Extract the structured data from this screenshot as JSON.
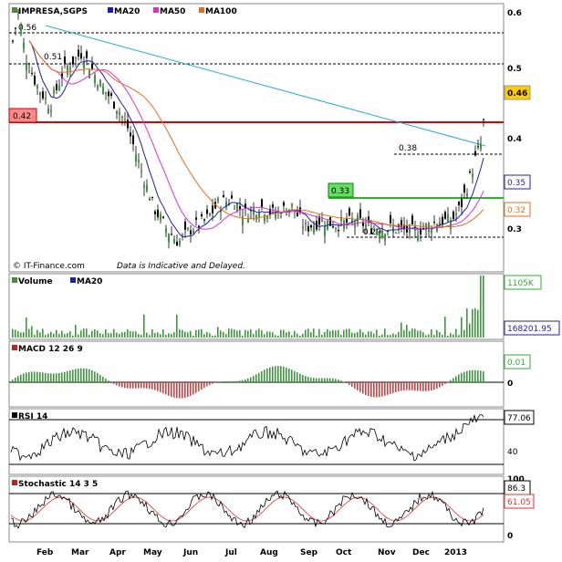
{
  "chart_data": {
    "type": "candlestick",
    "main": {
      "title": "IMPRESA,SGPS",
      "legend": [
        {
          "name": "MA20",
          "color": "#1f1fa8"
        },
        {
          "name": "MA50",
          "color": "#d633d6"
        },
        {
          "name": "MA100",
          "color": "#e0701a"
        }
      ],
      "ylim": [
        0.255,
        0.61
      ],
      "yticks": [
        "0.6",
        "0.5",
        "0.4",
        "0.3"
      ],
      "ytick_values": [
        0.6,
        0.5,
        0.4,
        0.3
      ],
      "price_labels": [
        {
          "text": "0.46",
          "value": 0.46,
          "bg": "#ffcc00"
        },
        {
          "text": "0.35",
          "value": 0.35,
          "bg": "#ffffff",
          "fg": "#1f1fa8"
        },
        {
          "text": "0.32",
          "value": 0.32,
          "bg": "#ffffff",
          "fg": "#e0701a"
        }
      ],
      "annotations": [
        "0.56",
        "0.51",
        "0.38",
        "0.29"
      ],
      "box_labels": [
        {
          "text": "0.42",
          "bg": "#ff8a8a"
        },
        {
          "text": "0.33",
          "bg": "#66dd66"
        }
      ],
      "levels": [
        0.56,
        0.51,
        0.38,
        0.29
      ],
      "support_resistance": [
        0.42,
        0.33
      ],
      "credit": "© IT-Finance.com",
      "disclaimer": "Data is Indicative and Delayed."
    },
    "volume": {
      "label": "Volume",
      "ma_label": "MA20",
      "max_label": "1105K",
      "ma_value_label": "168201.95"
    },
    "macd": {
      "label": "MACD 12 26 9",
      "value_label": "0.01",
      "zero_label": "0"
    },
    "rsi": {
      "label": "RSI 14",
      "value_label": "77.06",
      "level_label": "40"
    },
    "stochastic": {
      "label": "Stochastic 14 3 5",
      "top_label": "100",
      "k_label": "86.3",
      "d_label": "61.05",
      "bottom_label": "0"
    },
    "x_labels": [
      "Feb",
      "Mar",
      "Apr",
      "May",
      "Jun",
      "Jul",
      "Aug",
      "Sep",
      "Oct",
      "Nov",
      "Dec",
      "2013"
    ]
  }
}
